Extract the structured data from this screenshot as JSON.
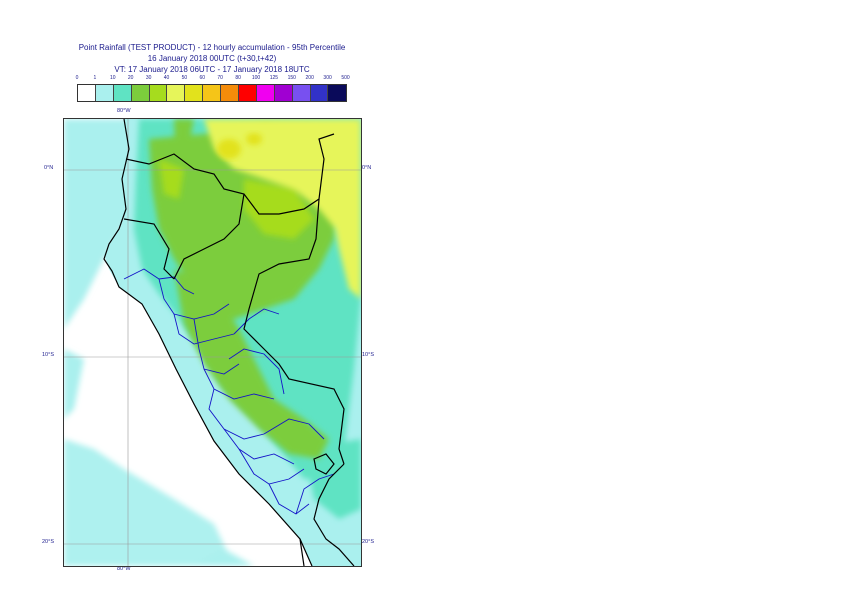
{
  "title": {
    "line1": "Point Rainfall (TEST PRODUCT) - 12 hourly accumulation - 95th Percentile",
    "line2": "16 January 2018 00UTC (t+30,t+42)",
    "line3": "VT: 17 January 2018 06UTC - 17 January 2018 18UTC"
  },
  "legend": {
    "thresholds": [
      "0",
      "1",
      "10",
      "20",
      "30",
      "40",
      "50",
      "60",
      "70",
      "80",
      "100",
      "125",
      "150",
      "200",
      "300",
      "500"
    ],
    "colors": [
      "#ffffff",
      "#aaf0ee",
      "#5fe3c3",
      "#7ccd3c",
      "#a6dc1e",
      "#e6f55a",
      "#e2e21c",
      "#f5c518",
      "#f58c0a",
      "#ff0000",
      "#f000f0",
      "#a000d2",
      "#7850f0",
      "#3232c8",
      "#0a0a5a"
    ]
  },
  "map": {
    "lon_label": "80°W",
    "lat_labels": [
      "0°N",
      "10°S",
      "20°S"
    ],
    "colors": {
      "land_light": "#aaf0ee",
      "land_medium": "#5fe3c3",
      "land_green": "#7ccd3c",
      "land_lime": "#a6dc1e",
      "land_yellow": "#e6f55a",
      "land_gold": "#e2e21c",
      "border_country": "#000000",
      "border_region": "#1414c8",
      "grid": "#999999"
    }
  }
}
